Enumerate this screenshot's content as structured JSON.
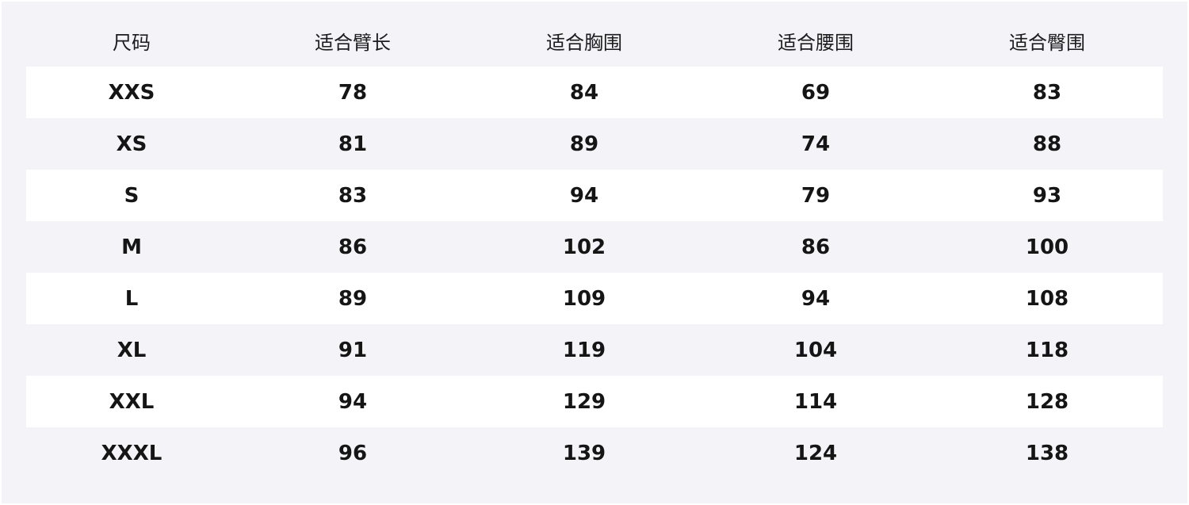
{
  "table": {
    "headers": [
      "尺码",
      "适合臂长",
      "适合胸围",
      "适合腰围",
      "适合臀围"
    ],
    "rows": [
      [
        "XXS",
        "78",
        "84",
        "69",
        "83"
      ],
      [
        "XS",
        "81",
        "89",
        "74",
        "88"
      ],
      [
        "S",
        "83",
        "94",
        "79",
        "93"
      ],
      [
        "M",
        "86",
        "102",
        "86",
        "100"
      ],
      [
        "L",
        "89",
        "109",
        "94",
        "108"
      ],
      [
        "XL",
        "91",
        "119",
        "104",
        "118"
      ],
      [
        "XXL",
        "94",
        "129",
        "114",
        "128"
      ],
      [
        "XXXL",
        "96",
        "139",
        "124",
        "138"
      ]
    ]
  },
  "colors": {
    "background": "#f4f4f8",
    "stripe": "#ffffff",
    "text": "#151515"
  }
}
